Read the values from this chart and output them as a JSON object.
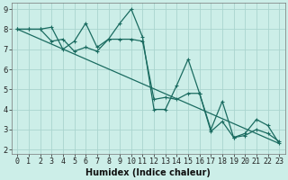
{
  "xlabel": "Humidex (Indice chaleur)",
  "bg_color": "#cceee8",
  "grid_color": "#aad4ce",
  "line_color": "#1a6b60",
  "xlim_min": -0.5,
  "xlim_max": 23.5,
  "ylim_min": 1.8,
  "ylim_max": 9.3,
  "yticks": [
    2,
    3,
    4,
    5,
    6,
    7,
    8,
    9
  ],
  "xticks": [
    0,
    1,
    2,
    3,
    4,
    5,
    6,
    7,
    8,
    9,
    10,
    11,
    12,
    13,
    14,
    15,
    16,
    17,
    18,
    19,
    20,
    21,
    22,
    23
  ],
  "series1_x": [
    0,
    1,
    2,
    3,
    4,
    5,
    6,
    7,
    8,
    9,
    10,
    11,
    12,
    13,
    14,
    15,
    16,
    17,
    18,
    19,
    20,
    21,
    22,
    23
  ],
  "series1_y": [
    8.0,
    8.0,
    8.0,
    8.1,
    7.0,
    7.4,
    8.3,
    7.1,
    7.5,
    8.3,
    9.0,
    7.6,
    4.0,
    4.0,
    5.2,
    6.5,
    4.8,
    3.0,
    4.4,
    2.6,
    2.8,
    3.5,
    3.2,
    2.3
  ],
  "series2_x": [
    0,
    1,
    2,
    3,
    4,
    5,
    6,
    7,
    8,
    9,
    10,
    11,
    12,
    13,
    14,
    15,
    16,
    17,
    18,
    19,
    20,
    21,
    22,
    23
  ],
  "series2_y": [
    8.0,
    8.0,
    8.0,
    7.4,
    7.5,
    6.9,
    7.1,
    6.9,
    7.5,
    7.5,
    7.5,
    7.4,
    4.5,
    4.6,
    4.5,
    4.8,
    4.8,
    2.9,
    3.4,
    2.6,
    2.7,
    3.0,
    2.8,
    2.4
  ],
  "series3_x": [
    0,
    23
  ],
  "series3_y": [
    8.0,
    2.3
  ],
  "marker_size": 2.5,
  "linewidth": 0.9,
  "font_size_label": 7,
  "font_size_tick": 6
}
